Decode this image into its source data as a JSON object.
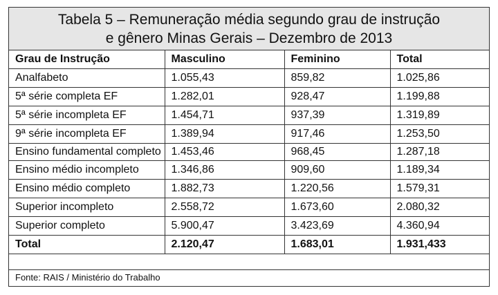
{
  "title": {
    "line1": "Tabela 5 – Remuneração média segundo grau de instrução",
    "line2": "e gênero Minas Gerais – Dezembro de 2013"
  },
  "columns": [
    "Grau de Instrução",
    "Masculino",
    "Feminino",
    "Total"
  ],
  "rows": [
    [
      "Analfabeto",
      "1.055,43",
      "859,82",
      "1.025,86"
    ],
    [
      "5ª série completa EF",
      "1.282,01",
      "928,47",
      "1.199,88"
    ],
    [
      "5ª série incompleta EF",
      "1.454,71",
      "937,39",
      "1.319,89"
    ],
    [
      "9ª série incompleta EF",
      "1.389,94",
      "917,46",
      "1.253,50"
    ],
    [
      "Ensino fundamental completo",
      "1.453,46",
      "968,45",
      "1.287,18"
    ],
    [
      "Ensino médio incompleto",
      "1.346,86",
      "909,60",
      "1.189,34"
    ],
    [
      "Ensino médio completo",
      "1.882,73",
      "1.220,56",
      "1.579,31"
    ],
    [
      "Superior incompleto",
      "2.558,72",
      "1.673,60",
      "2.080,32"
    ],
    [
      "Superior completo",
      "5.900,47",
      "3.423,69",
      "4.360,94"
    ]
  ],
  "total": [
    "Total",
    "2.120,47",
    "1.683,01",
    "1.931,433"
  ],
  "source": "Fonte: RAIS / Ministério do Trabalho"
}
